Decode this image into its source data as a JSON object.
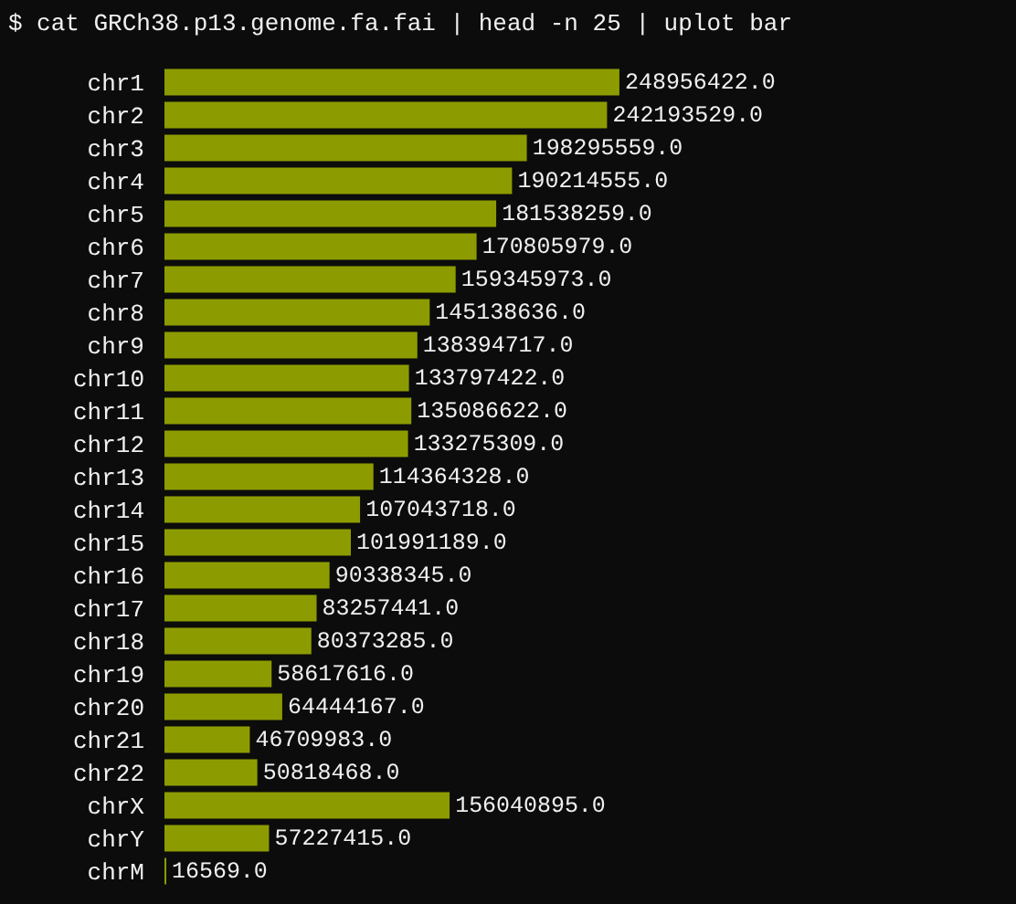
{
  "chart_data": {
    "type": "bar",
    "orientation": "horizontal",
    "title": "$ cat GRCh38.p13.genome.fa.fai | head -n 25 | uplot bar",
    "categories": [
      "chr1",
      "chr2",
      "chr3",
      "chr4",
      "chr5",
      "chr6",
      "chr7",
      "chr8",
      "chr9",
      "chr10",
      "chr11",
      "chr12",
      "chr13",
      "chr14",
      "chr15",
      "chr16",
      "chr17",
      "chr18",
      "chr19",
      "chr20",
      "chr21",
      "chr22",
      "chrX",
      "chrY",
      "chrM"
    ],
    "values": [
      248956422,
      242193529,
      198295559,
      190214555,
      181538259,
      170805979,
      159345973,
      145138636,
      138394717,
      133797422,
      135086622,
      133275309,
      114364328,
      107043718,
      101991189,
      90338345,
      83257441,
      80373285,
      58617616,
      64444167,
      46709983,
      50818468,
      156040895,
      57227415,
      16569
    ],
    "value_labels": [
      "248956422.0",
      "242193529.0",
      "198295559.0",
      "190214555.0",
      "181538259.0",
      "170805979.0",
      "159345973.0",
      "145138636.0",
      "138394717.0",
      "133797422.0",
      "135086622.0",
      "133275309.0",
      "114364328.0",
      "107043718.0",
      "101991189.0",
      "90338345.0",
      "83257441.0",
      "80373285.0",
      "58617616.0",
      "64444167.0",
      "46709983.0",
      "50818468.0",
      "156040895.0",
      "57227415.0",
      "16569.0"
    ],
    "color": "#8c9c00",
    "xlim": [
      0,
      466000000
    ],
    "tick_labels": "y",
    "grid": false,
    "legend": false
  }
}
